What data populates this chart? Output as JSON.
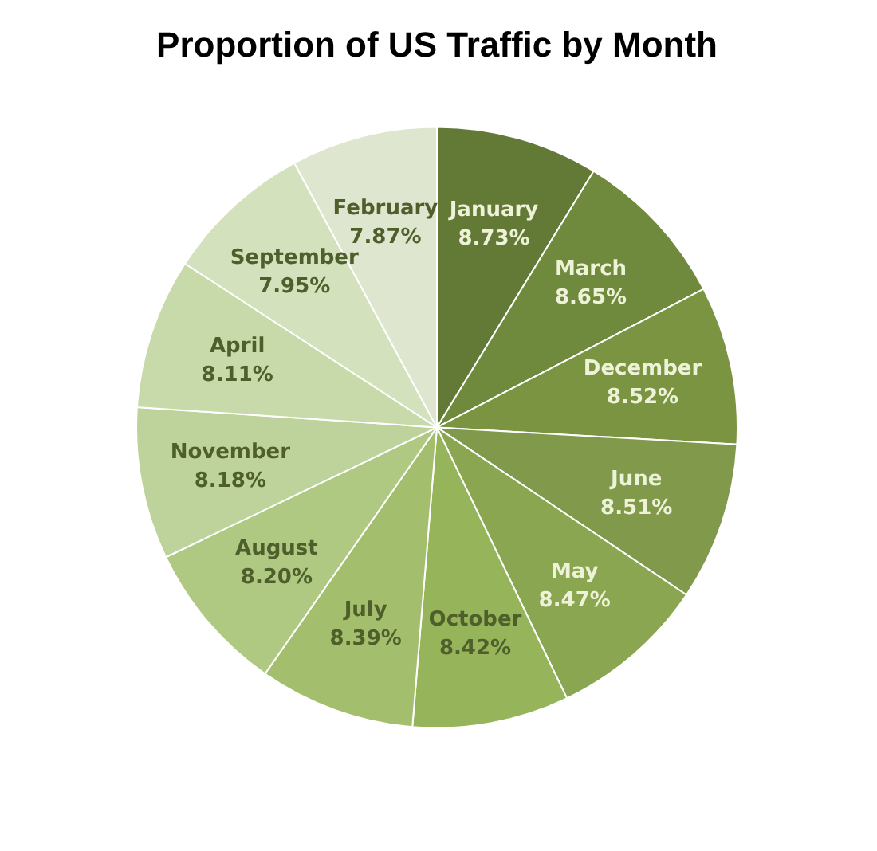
{
  "chart_data": {
    "type": "pie",
    "title": "Proportion of US Traffic by Month",
    "categories": [
      "January",
      "March",
      "December",
      "June",
      "May",
      "October",
      "July",
      "August",
      "November",
      "April",
      "September",
      "February"
    ],
    "values": [
      8.73,
      8.65,
      8.52,
      8.51,
      8.47,
      8.42,
      8.39,
      8.2,
      8.18,
      8.11,
      7.95,
      7.87
    ],
    "value_labels": [
      "8.73%",
      "8.65%",
      "8.52%",
      "8.51%",
      "8.47%",
      "8.42%",
      "8.39%",
      "8.20%",
      "8.18%",
      "8.11%",
      "7.95%",
      "7.87%"
    ],
    "colors": [
      "#637a36",
      "#6f8a3c",
      "#7a9442",
      "#80994a",
      "#8aa651",
      "#96b45a",
      "#a3be6c",
      "#afc882",
      "#bdd39b",
      "#c8daa9",
      "#d3e1bd",
      "#dfe6cf"
    ]
  }
}
